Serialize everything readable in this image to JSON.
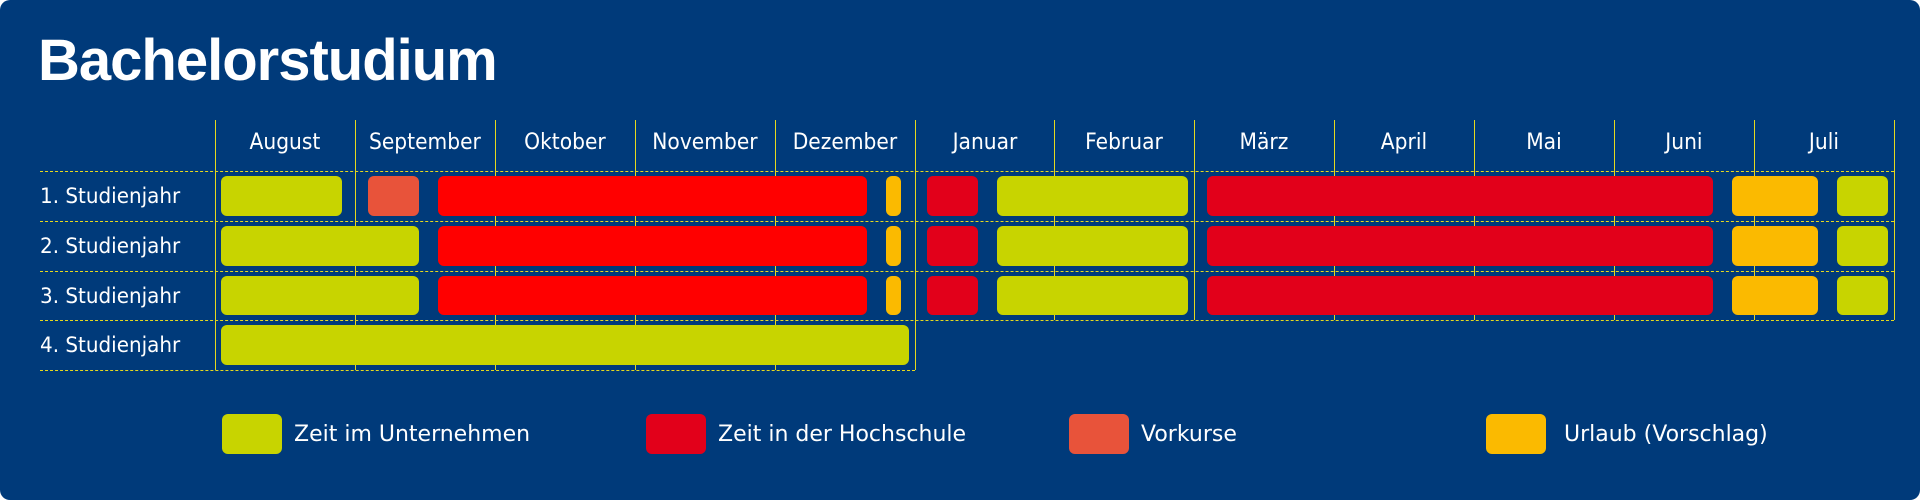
{
  "title": "Bachelorstudium",
  "colors": {
    "background": "#003A7A",
    "grid": "#E6D81E",
    "company": "#C8D400",
    "university": "#E2001A",
    "university_bright": "#FF0000",
    "prep_course": "#E8533A",
    "vacation": "#FBBA00"
  },
  "chart_data": {
    "type": "gantt",
    "title": "Bachelorstudium",
    "categories": [
      "August",
      "September",
      "Oktober",
      "November",
      "Dezember",
      "Januar",
      "Februar",
      "März",
      "April",
      "Mai",
      "Juni",
      "Juli"
    ],
    "rows": [
      "1. Studienjahr",
      "2. Studienjahr",
      "3. Studienjahr",
      "4. Studienjahr"
    ],
    "legend": [
      {
        "key": "company",
        "label": "Zeit im Unternehmen",
        "color": "#C8D400"
      },
      {
        "key": "university",
        "label": "Zeit in der Hochschule",
        "color": "#E2001A"
      },
      {
        "key": "prep_course",
        "label": "Vorkurse",
        "color": "#E8533A"
      },
      {
        "key": "vacation",
        "label": "Urlaub (Vorschlag)",
        "color": "#FBBA00"
      }
    ],
    "series": [
      {
        "row": "1. Studienjahr",
        "segments": [
          {
            "type": "company",
            "start": 0.0,
            "end": 0.95
          },
          {
            "type": "prep_course",
            "start": 1.05,
            "end": 1.5
          },
          {
            "type": "university",
            "start": 1.55,
            "end": 4.7,
            "color": "#FF0000"
          },
          {
            "type": "vacation",
            "start": 4.75,
            "end": 4.95
          },
          {
            "type": "university",
            "start": 5.05,
            "end": 5.5
          },
          {
            "type": "company",
            "start": 5.55,
            "end": 7.0
          },
          {
            "type": "university",
            "start": 7.05,
            "end": 10.75
          },
          {
            "type": "vacation",
            "start": 10.8,
            "end": 11.5
          },
          {
            "type": "company",
            "start": 11.55,
            "end": 12.0
          }
        ]
      },
      {
        "row": "2. Studienjahr",
        "segments": [
          {
            "type": "company",
            "start": 0.0,
            "end": 1.5
          },
          {
            "type": "university",
            "start": 1.55,
            "end": 4.7,
            "color": "#FF0000"
          },
          {
            "type": "vacation",
            "start": 4.75,
            "end": 4.95
          },
          {
            "type": "university",
            "start": 5.05,
            "end": 5.5
          },
          {
            "type": "company",
            "start": 5.55,
            "end": 7.0
          },
          {
            "type": "university",
            "start": 7.05,
            "end": 10.75
          },
          {
            "type": "vacation",
            "start": 10.8,
            "end": 11.5
          },
          {
            "type": "company",
            "start": 11.55,
            "end": 12.0
          }
        ]
      },
      {
        "row": "3. Studienjahr",
        "segments": [
          {
            "type": "company",
            "start": 0.0,
            "end": 1.5
          },
          {
            "type": "university",
            "start": 1.55,
            "end": 4.7,
            "color": "#FF0000"
          },
          {
            "type": "vacation",
            "start": 4.75,
            "end": 4.95
          },
          {
            "type": "university",
            "start": 5.05,
            "end": 5.5
          },
          {
            "type": "company",
            "start": 5.55,
            "end": 7.0
          },
          {
            "type": "university",
            "start": 7.05,
            "end": 10.75
          },
          {
            "type": "vacation",
            "start": 10.8,
            "end": 11.5
          },
          {
            "type": "company",
            "start": 11.55,
            "end": 12.0
          }
        ]
      },
      {
        "row": "4. Studienjahr",
        "segments": [
          {
            "type": "company",
            "start": 0.0,
            "end": 5.0
          }
        ]
      }
    ]
  }
}
